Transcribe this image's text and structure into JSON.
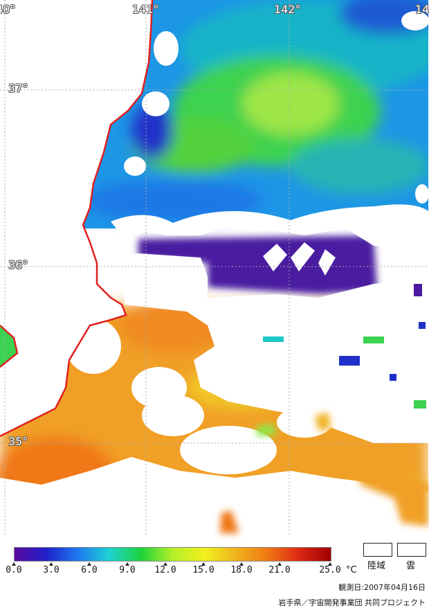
{
  "map": {
    "longitude_labels": [
      "40°",
      "141°",
      "142°",
      "14"
    ],
    "latitude_labels": [
      "37°",
      "36°",
      "35°"
    ],
    "coastline_color": "#e01f1f",
    "grid_color": "#aaaaaa",
    "cloud_color": "#ffffff"
  },
  "legend": {
    "colorbar_stops": [
      "#5a0aa0",
      "#2020c8",
      "#1e78f0",
      "#1ed2d2",
      "#1ed23c",
      "#b4f028",
      "#f0f01e",
      "#f0b41e",
      "#f07814",
      "#dc2814",
      "#a00000"
    ],
    "tick_labels": [
      "0.0",
      "3.0",
      "6.0",
      "9.0",
      "12.0",
      "15.0",
      "18.0",
      "21.0",
      "25.0"
    ],
    "unit": "°C",
    "land_label": "陸域",
    "cloud_label": "雲"
  },
  "footer": {
    "observation_date": "観測日:2007年04月16日",
    "credit": "岩手県／宇宙開発事業団 共同プロジェクト"
  }
}
